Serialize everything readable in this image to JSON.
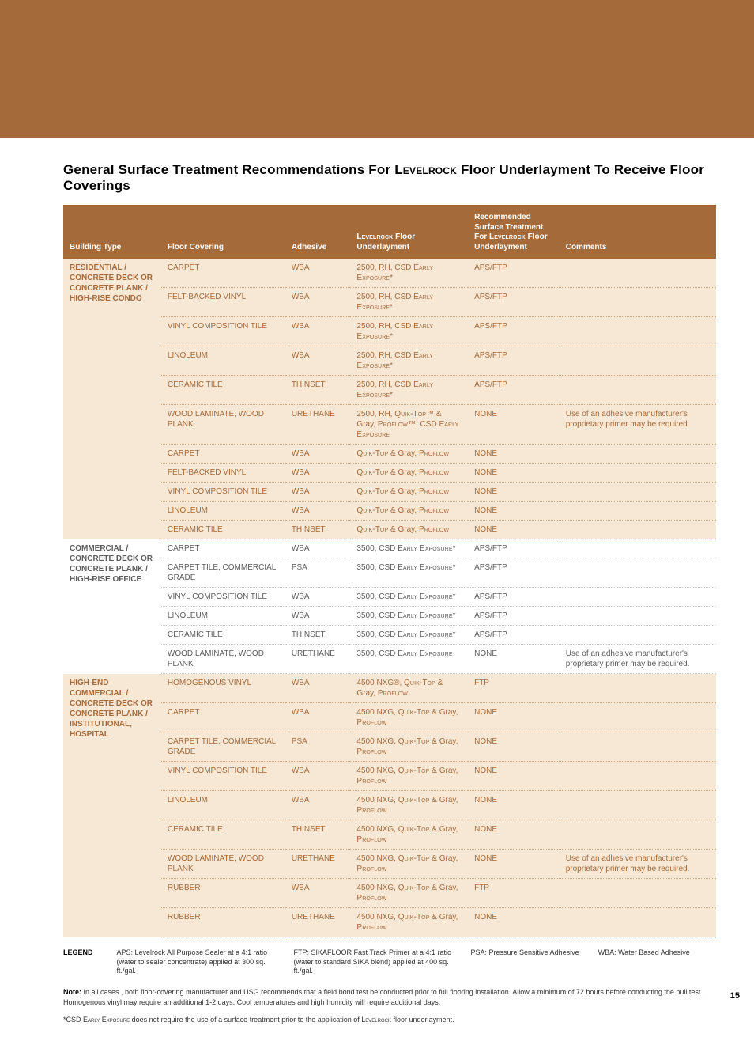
{
  "title_pre": "General Surface Treatment Recommendations For ",
  "title_lr": "Levelrock",
  "title_post": " Floor Underlayment To Receive Floor Coverings",
  "headers": {
    "c0": "Building Type",
    "c1": "Floor Covering",
    "c2": "Adhesive",
    "c3_pre": "Levelrock",
    "c3_post": " Floor Underlayment",
    "c4_pre": "Recommended Surface Treatment For ",
    "c4_lr": "Levelrock",
    "c4_post": " Floor Underlayment",
    "c5": "Comments"
  },
  "bt": {
    "a": "RESIDENTIAL / CONCRETE DECK OR CONCRETE PLANK / HIGH-RISE CONDO",
    "b": "COMMERCIAL / CONCRETE DECK OR CONCRETE PLANK / HIGH-RISE OFFICE",
    "c": "HIGH-END COMMERCIAL / CONCRETE DECK OR CONCRETE PLANK / INSTITUTIONAL, HOSPITAL"
  },
  "rows": {
    "a": [
      {
        "fc": "CARPET",
        "ad": "WBA",
        "ul": "2500, RH, CSD Early Exposure*",
        "tr": "APS/FTP",
        "cm": ""
      },
      {
        "fc": "FELT-BACKED VINYL",
        "ad": "WBA",
        "ul": "2500, RH, CSD Early Exposure*",
        "tr": "APS/FTP",
        "cm": ""
      },
      {
        "fc": "VINYL COMPOSITION TILE",
        "ad": "WBA",
        "ul": "2500, RH, CSD Early Exposure*",
        "tr": "APS/FTP",
        "cm": ""
      },
      {
        "fc": "LINOLEUM",
        "ad": "WBA",
        "ul": "2500, RH, CSD Early Exposure*",
        "tr": "APS/FTP",
        "cm": ""
      },
      {
        "fc": "CERAMIC TILE",
        "ad": "THINSET",
        "ul": "2500, RH, CSD Early Exposure*",
        "tr": "APS/FTP",
        "cm": ""
      },
      {
        "fc": "WOOD LAMINATE, WOOD PLANK",
        "ad": "URETHANE",
        "ul": "2500, RH, Quik-Top™ & Gray, Proflow™, CSD Early Exposure",
        "tr": "NONE",
        "cm": "Use of an adhesive manufacturer's proprietary primer may be required."
      },
      {
        "fc": "CARPET",
        "ad": "WBA",
        "ul": "Quik-Top & Gray, Proflow",
        "tr": "NONE",
        "cm": ""
      },
      {
        "fc": "FELT-BACKED VINYL",
        "ad": "WBA",
        "ul": "Quik-Top & Gray, Proflow",
        "tr": "NONE",
        "cm": ""
      },
      {
        "fc": "VINYL COMPOSITION TILE",
        "ad": "WBA",
        "ul": "Quik-Top & Gray, Proflow",
        "tr": "NONE",
        "cm": ""
      },
      {
        "fc": "LINOLEUM",
        "ad": "WBA",
        "ul": "Quik-Top & Gray, Proflow",
        "tr": "NONE",
        "cm": ""
      },
      {
        "fc": "CERAMIC TILE",
        "ad": "THINSET",
        "ul": "Quik-Top & Gray, Proflow",
        "tr": "NONE",
        "cm": ""
      }
    ],
    "b": [
      {
        "fc": "CARPET",
        "ad": "WBA",
        "ul": "3500, CSD Early Exposure*",
        "tr": "APS/FTP",
        "cm": ""
      },
      {
        "fc": "CARPET TILE, COMMERCIAL GRADE",
        "ad": "PSA",
        "ul": "3500, CSD Early Exposure*",
        "tr": "APS/FTP",
        "cm": ""
      },
      {
        "fc": "VINYL COMPOSITION TILE",
        "ad": "WBA",
        "ul": "3500, CSD Early Exposure*",
        "tr": "APS/FTP",
        "cm": ""
      },
      {
        "fc": "LINOLEUM",
        "ad": "WBA",
        "ul": "3500, CSD Early Exposure*",
        "tr": "APS/FTP",
        "cm": ""
      },
      {
        "fc": "CERAMIC TILE",
        "ad": "THINSET",
        "ul": "3500, CSD Early Exposure*",
        "tr": "APS/FTP",
        "cm": ""
      },
      {
        "fc": "WOOD LAMINATE, WOOD PLANK",
        "ad": "URETHANE",
        "ul": "3500, CSD Early Exposure",
        "tr": "NONE",
        "cm": "Use of an adhesive manufacturer's proprietary primer may be required."
      }
    ],
    "c": [
      {
        "fc": "HOMOGENOUS VINYL",
        "ad": "WBA",
        "ul": "4500 NXG®, Quik-Top & Gray, Proflow",
        "tr": "FTP",
        "cm": ""
      },
      {
        "fc": "CARPET",
        "ad": "WBA",
        "ul": "4500 NXG, Quik-Top & Gray, Proflow",
        "tr": "NONE",
        "cm": ""
      },
      {
        "fc": "CARPET TILE, COMMERCIAL GRADE",
        "ad": "PSA",
        "ul": "4500 NXG, Quik-Top & Gray, Proflow",
        "tr": "NONE",
        "cm": ""
      },
      {
        "fc": "VINYL COMPOSITION TILE",
        "ad": "WBA",
        "ul": "4500 NXG, Quik-Top & Gray, Proflow",
        "tr": "NONE",
        "cm": ""
      },
      {
        "fc": "LINOLEUM",
        "ad": "WBA",
        "ul": "4500 NXG, Quik-Top & Gray, Proflow",
        "tr": "NONE",
        "cm": ""
      },
      {
        "fc": "CERAMIC TILE",
        "ad": "THINSET",
        "ul": "4500 NXG, Quik-Top & Gray, Proflow",
        "tr": "NONE",
        "cm": ""
      },
      {
        "fc": "WOOD LAMINATE, WOOD PLANK",
        "ad": "URETHANE",
        "ul": "4500 NXG, Quik-Top & Gray, Proflow",
        "tr": "NONE",
        "cm": "Use of an adhesive manufacturer's proprietary primer may be required."
      },
      {
        "fc": "RUBBER",
        "ad": "WBA",
        "ul": "4500 NXG, Quik-Top & Gray, Proflow",
        "tr": "FTP",
        "cm": ""
      },
      {
        "fc": "RUBBER",
        "ad": "URETHANE",
        "ul": "4500 NXG, Quik-Top & Gray, Proflow",
        "tr": "NONE",
        "cm": ""
      }
    ]
  },
  "legend": {
    "label": "LEGEND",
    "aps": "APS: Levelrock All Purpose Sealer at a 4:1 ratio (water to sealer concentrate) applied at 300 sq. ft./gal.",
    "ftp": "FTP: SIKAFLOOR Fast Track Primer at a 4:1 ratio (water to standard SIKA blend) applied at 400 sq. ft./gal.",
    "psa": "PSA: Pressure Sensitive Adhesive",
    "wba": "WBA: Water Based Adhesive"
  },
  "note_label": "Note: ",
  "note_text": "In all cases , both floor-covering manufacturer and USG recommends that a field bond test be conducted prior to full flooring installation. Allow a minimum of 72 hours before conducting the pull test. Homogenous vinyl may require an additional 1-2 days. Cool temperatures and high humidity will require additional days.",
  "footnote_pre": "*CSD ",
  "footnote_sc": "Early Exposure",
  "footnote_post": " does not require the use of a surface treatment prior to the application of ",
  "footnote_lr": "Levelrock",
  "footnote_end": " floor underlayment.",
  "page_num": "15",
  "colwidths": [
    "15%",
    "19%",
    "10%",
    "18%",
    "14%",
    "24%"
  ]
}
